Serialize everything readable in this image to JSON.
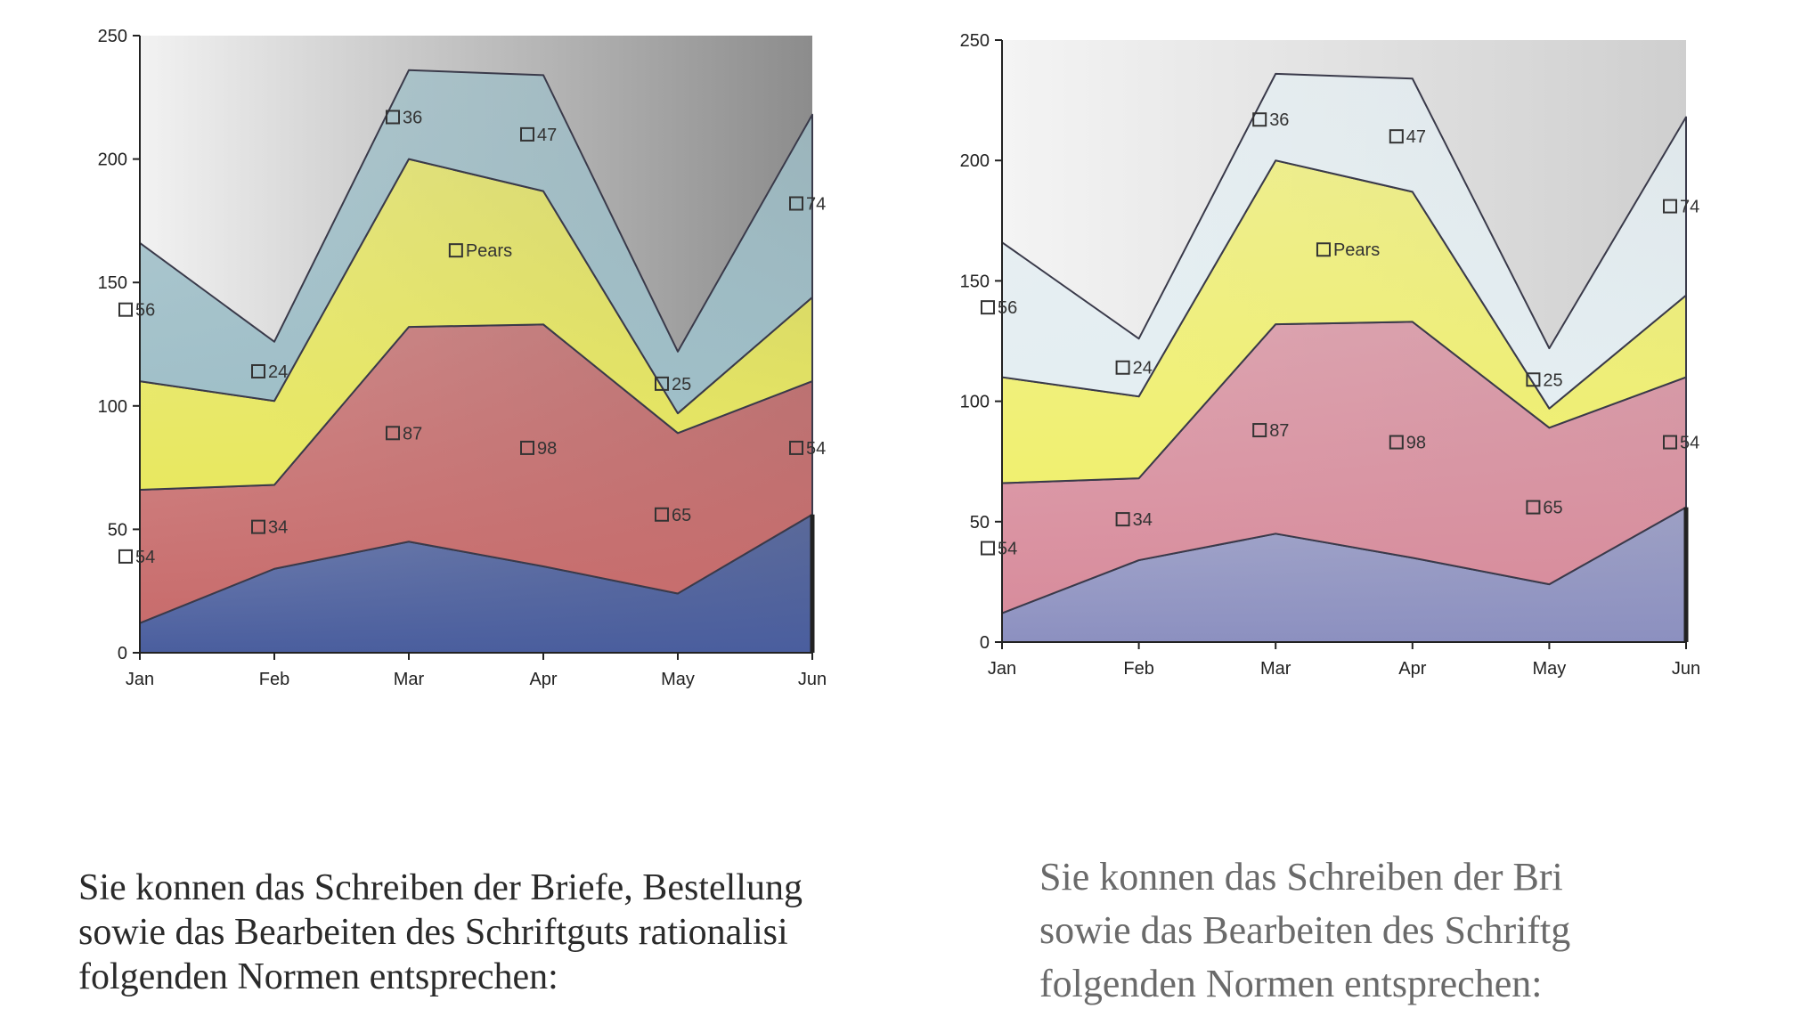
{
  "chart_data": [
    {
      "type": "area",
      "stacked": true,
      "categories": [
        "Jan",
        "Feb",
        "Mar",
        "Apr",
        "May",
        "Jun"
      ],
      "ylim": [
        0,
        250
      ],
      "yticks": [
        0,
        50,
        100,
        150,
        200,
        250
      ],
      "series": [
        {
          "values": [
            12,
            34,
            45,
            35,
            24,
            56
          ],
          "color": "#4a5e9e"
        },
        {
          "values": [
            54,
            34,
            87,
            98,
            65,
            54
          ],
          "color": "#c86c6c"
        },
        {
          "values": [
            44,
            34,
            68,
            54,
            8,
            34
          ],
          "color": "#e8e860"
        },
        {
          "values": [
            56,
            24,
            36,
            47,
            25,
            74
          ],
          "color": "#9fbfc8"
        }
      ],
      "labels": [
        {
          "category": "Jan",
          "y": 139,
          "text": "56"
        },
        {
          "category": "Feb",
          "y": 114,
          "text": "24"
        },
        {
          "category": "Mar",
          "y": 217,
          "text": "36"
        },
        {
          "category": "Apr",
          "y": 210,
          "text": "47"
        },
        {
          "category": "May",
          "y": 109,
          "text": "25"
        },
        {
          "category": "Jun",
          "y": 182,
          "text": "74"
        },
        {
          "category": "Jan",
          "y": 39,
          "text": "54"
        },
        {
          "category": "Feb",
          "y": 51,
          "text": "34"
        },
        {
          "category": "Mar",
          "y": 89,
          "text": "87"
        },
        {
          "category": "Apr",
          "y": 83,
          "text": "98"
        },
        {
          "category": "May",
          "y": 56,
          "text": "65"
        },
        {
          "category": "Jun",
          "y": 83,
          "text": "54"
        },
        {
          "category": "Mar",
          "y": 163,
          "text": "Pears"
        }
      ]
    },
    {
      "type": "area",
      "stacked": true,
      "categories": [
        "Jan",
        "Feb",
        "Mar",
        "Apr",
        "May",
        "Jun"
      ],
      "ylim": [
        0,
        250
      ],
      "yticks": [
        0,
        50,
        100,
        150,
        200,
        250
      ],
      "series": [
        {
          "values": [
            12,
            34,
            45,
            35,
            24,
            56
          ],
          "color": "#8c90c0"
        },
        {
          "values": [
            54,
            34,
            87,
            98,
            65,
            54
          ],
          "color": "#d88c9c"
        },
        {
          "values": [
            44,
            34,
            68,
            54,
            8,
            34
          ],
          "color": "#f0f070"
        },
        {
          "values": [
            56,
            24,
            36,
            47,
            25,
            74
          ],
          "color": "#e4eef2"
        }
      ],
      "labels": [
        {
          "category": "Jan",
          "y": 139,
          "text": "56"
        },
        {
          "category": "Feb",
          "y": 114,
          "text": "24"
        },
        {
          "category": "Mar",
          "y": 217,
          "text": "36"
        },
        {
          "category": "Apr",
          "y": 210,
          "text": "47"
        },
        {
          "category": "May",
          "y": 109,
          "text": "25"
        },
        {
          "category": "Jun",
          "y": 181,
          "text": "74"
        },
        {
          "category": "Jan",
          "y": 39,
          "text": "54"
        },
        {
          "category": "Feb",
          "y": 51,
          "text": "34"
        },
        {
          "category": "Mar",
          "y": 88,
          "text": "87"
        },
        {
          "category": "Apr",
          "y": 83,
          "text": "98"
        },
        {
          "category": "May",
          "y": 56,
          "text": "65"
        },
        {
          "category": "Jun",
          "y": 83,
          "text": "54"
        },
        {
          "category": "Mar",
          "y": 163,
          "text": "Pears"
        }
      ]
    }
  ],
  "paragraphs": [
    {
      "lines": [
        "Sie konnen das Schreiben der Briefe, Bestellung",
        "sowie das Bearbeiten des Schriftguts rationalisi",
        "folgenden Normen entsprechen:"
      ]
    },
    {
      "lines": [
        "Sie konnen das Schreiben der Bri",
        "sowie das Bearbeiten des Schriftg",
        "folgenden Normen entsprechen:"
      ]
    }
  ]
}
